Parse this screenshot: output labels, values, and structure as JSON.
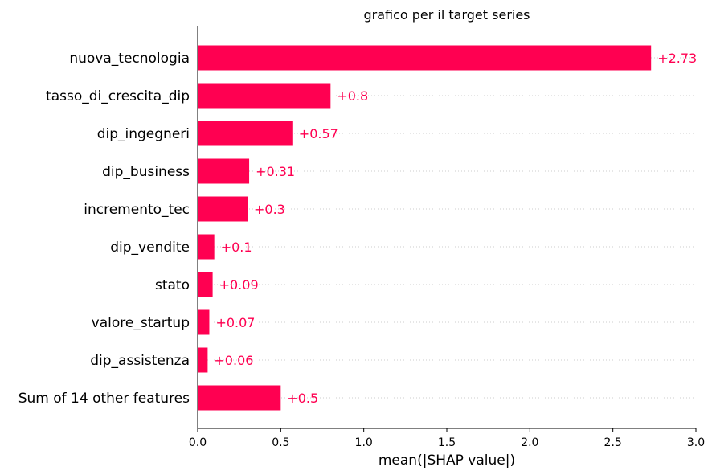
{
  "chart_data": {
    "type": "bar",
    "orientation": "horizontal",
    "title": "grafico per il target series",
    "xlabel": "mean(|SHAP value|)",
    "ylabel": "",
    "xlim": [
      0,
      3.0
    ],
    "xticks": [
      "0.0",
      "0.5",
      "1.0",
      "1.5",
      "2.0",
      "2.5",
      "3.0"
    ],
    "categories": [
      "nuova_tecnologia",
      "tasso_di_crescita_dip",
      "dip_ingegneri",
      "dip_business",
      "incremento_tec",
      "dip_vendite",
      "stato",
      "valore_startup",
      "dip_assistenza",
      "Sum of 14 other features"
    ],
    "values": [
      2.73,
      0.8,
      0.57,
      0.31,
      0.3,
      0.1,
      0.09,
      0.07,
      0.06,
      0.5
    ],
    "value_labels": [
      "+2.73",
      "+0.8",
      "+0.57",
      "+0.31",
      "+0.3",
      "+0.1",
      "+0.09",
      "+0.07",
      "+0.06",
      "+0.5"
    ],
    "bar_color": "#ff0051",
    "grid": "dotted horizontal lines per row",
    "legend": "none"
  }
}
